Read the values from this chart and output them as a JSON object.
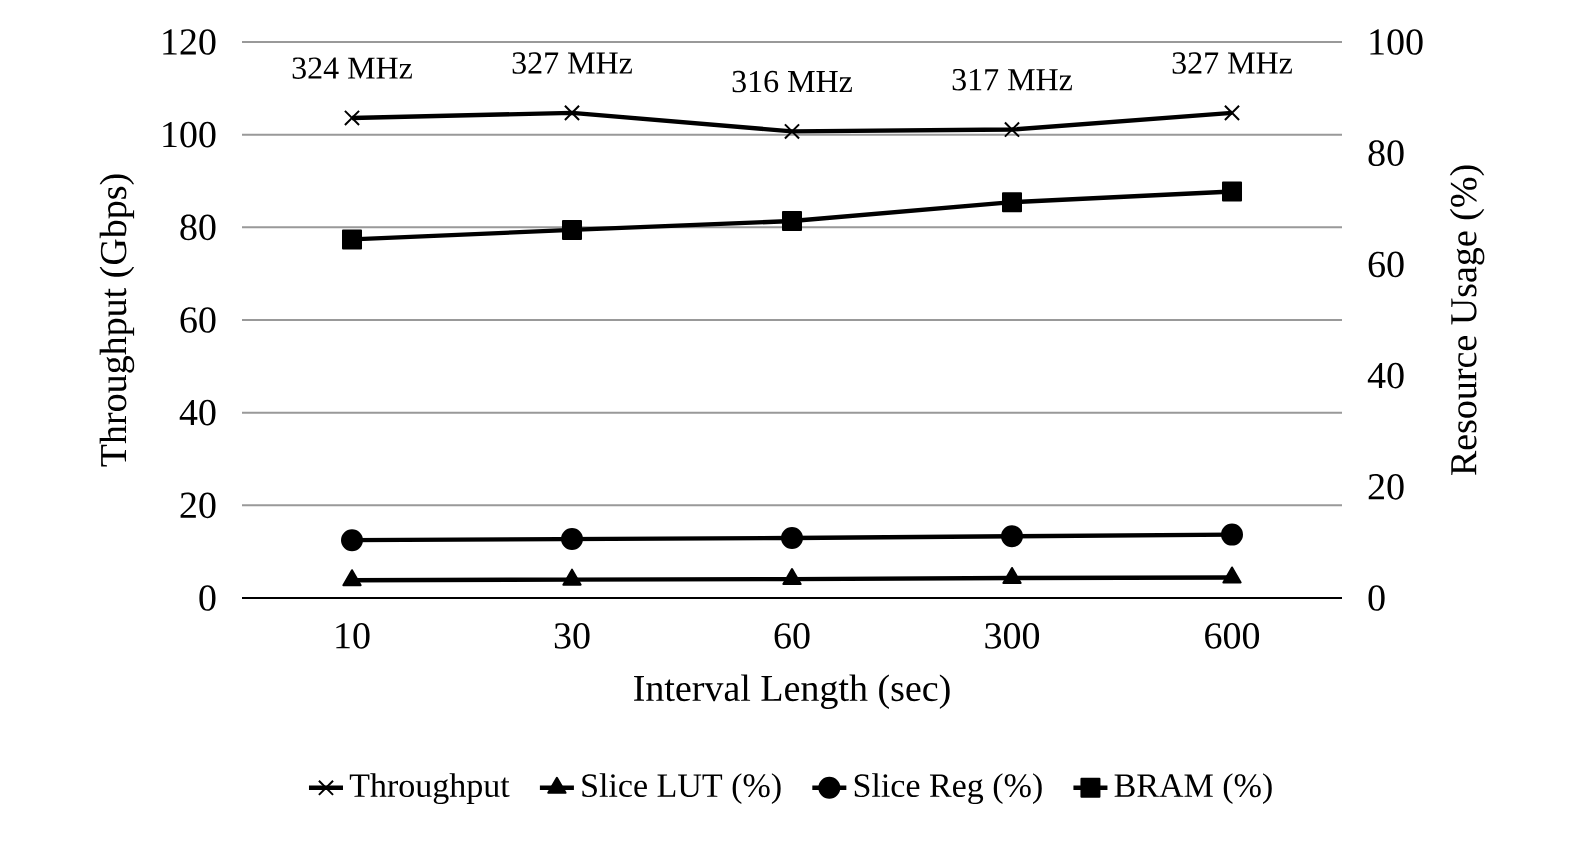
{
  "chart_data": {
    "type": "line",
    "xlabel": "Interval Length (sec)",
    "ylabel": "Throughput (Gbps)",
    "y2label": "Resource Usage (%)",
    "categories": [
      "10",
      "30",
      "60",
      "300",
      "600"
    ],
    "series": [
      {
        "name": "Throughput",
        "color": "#000000",
        "marker": "cross",
        "values": [
          103.6,
          104.7,
          100.7,
          101.1,
          104.7
        ]
      },
      {
        "name": "Slice LUT (%)",
        "color": "#000000",
        "marker": "triangle",
        "axis": "y2",
        "values": [
          3.2,
          3.3,
          3.4,
          3.6,
          3.7
        ]
      },
      {
        "name": "Slice Reg (%)",
        "color": "#000000",
        "marker": "circle",
        "axis": "y2",
        "values": [
          10.4,
          10.6,
          10.8,
          11.1,
          11.4
        ]
      },
      {
        "name": "BRAM (%)",
        "color": "#000000",
        "marker": "square",
        "axis": "y2",
        "values": [
          64.5,
          66.2,
          67.8,
          71.2,
          73.1
        ]
      }
    ],
    "ylim": [
      0,
      120
    ],
    "yticks": [
      0,
      20,
      40,
      60,
      80,
      100,
      120
    ],
    "y2lim": [
      0,
      100
    ],
    "y2ticks": [
      0,
      20,
      40,
      60,
      80,
      100
    ],
    "grid": "y",
    "legend": "bottom",
    "line_style": "solid",
    "annotations": [
      {
        "text": "324 MHz",
        "x": "10",
        "y": 103.6
      },
      {
        "text": "327 MHz",
        "x": "30",
        "y": 104.7
      },
      {
        "text": "316 MHz",
        "x": "60",
        "y": 100.7
      },
      {
        "text": "317 MHz",
        "x": "300",
        "y": 101.1
      },
      {
        "text": "327 MHz",
        "x": "600",
        "y": 104.7
      }
    ]
  }
}
